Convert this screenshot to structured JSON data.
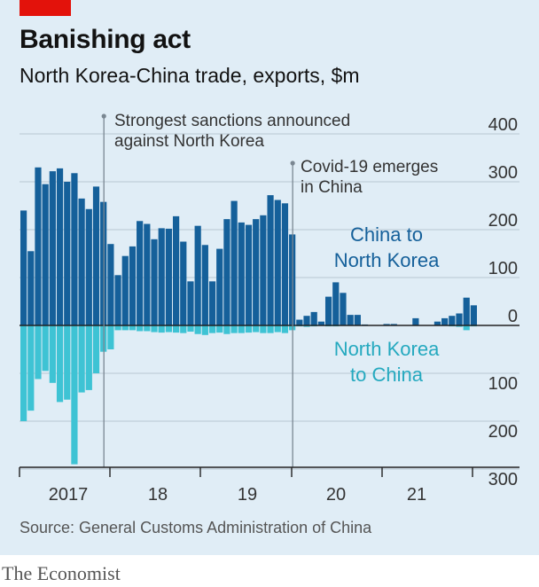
{
  "header": {
    "title": "Banishing act",
    "subtitle": "North Korea-China trade, exports, $m"
  },
  "source": "Source: General Customs Administration of China",
  "footer": "The Economist",
  "colors": {
    "export_series": "#15609a",
    "import_series": "#3ec3d4",
    "grid": "#b9c7d2",
    "axis": "#333333",
    "brand": "#e3120b"
  },
  "chart_data": {
    "type": "bar",
    "title": "Banishing act",
    "subtitle": "North Korea-China trade, exports, $m",
    "x_tick_labels": [
      "2017",
      "18",
      "19",
      "20",
      "21"
    ],
    "y_tick_labels_up": [
      "400",
      "300",
      "200",
      "100",
      "0"
    ],
    "y_tick_labels_down": [
      "100",
      "200",
      "300"
    ],
    "ylim": [
      -300,
      400
    ],
    "grid": true,
    "series": [
      {
        "name": "China to North Korea",
        "values": [
          240,
          155,
          330,
          295,
          322,
          328,
          300,
          318,
          265,
          243,
          290,
          258,
          170,
          105,
          145,
          165,
          218,
          212,
          180,
          203,
          202,
          228,
          175,
          92,
          208,
          168,
          92,
          160,
          222,
          260,
          215,
          210,
          222,
          230,
          272,
          262,
          255,
          190,
          12,
          20,
          28,
          8,
          60,
          90,
          68,
          22,
          22,
          2,
          0,
          0,
          3,
          3,
          0,
          0,
          15,
          0,
          0,
          8,
          15,
          20,
          25,
          58,
          42
        ]
      },
      {
        "name": "North Korea to China",
        "values": [
          -200,
          -178,
          -112,
          -95,
          -120,
          -160,
          -155,
          -290,
          -140,
          -135,
          -100,
          -55,
          -50,
          -10,
          -10,
          -10,
          -12,
          -12,
          -14,
          -15,
          -14,
          -15,
          -16,
          -13,
          -18,
          -20,
          -16,
          -15,
          -18,
          -16,
          -16,
          -15,
          -14,
          -16,
          -16,
          -14,
          -16,
          -10,
          -2,
          -3,
          -2,
          -1,
          -2,
          -2,
          -1,
          -1,
          -1,
          0,
          0,
          0,
          0,
          0,
          0,
          0,
          -1,
          0,
          0,
          0,
          -1,
          -2,
          -3,
          -10,
          -2
        ]
      }
    ],
    "annotations": [
      {
        "lines": [
          "Strongest sanctions announced",
          "against North Korea"
        ],
        "x_index": 11
      },
      {
        "lines": [
          "Covid-19 emerges",
          "in China"
        ],
        "x_index": 37
      }
    ],
    "series_labels": {
      "exports": [
        "China to",
        "North Korea"
      ],
      "imports": [
        "North Korea",
        "to China"
      ]
    }
  }
}
